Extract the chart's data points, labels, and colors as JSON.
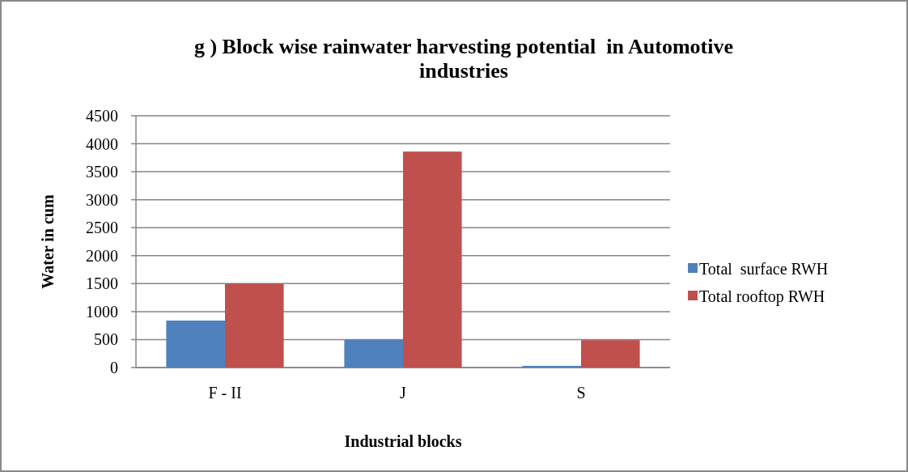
{
  "chart_data": {
    "type": "bar",
    "title": "g ) Block wise rainwater harvesting potential  in Automotive industries",
    "xlabel": "Industrial blocks",
    "ylabel": "Water in cum",
    "categories": [
      "F - II",
      "J",
      "S"
    ],
    "series": [
      {
        "name": "Total  surface RWH",
        "color": "#4f81bd",
        "values": [
          840,
          500,
          30
        ]
      },
      {
        "name": "Total rooftop RWH",
        "color": "#c0504d",
        "values": [
          1500,
          3860,
          490
        ]
      }
    ],
    "ylim": [
      0,
      4500
    ],
    "yticks": [
      0,
      500,
      1000,
      1500,
      2000,
      2500,
      3000,
      3500,
      4000,
      4500
    ],
    "grid": "y",
    "legend": "right"
  }
}
